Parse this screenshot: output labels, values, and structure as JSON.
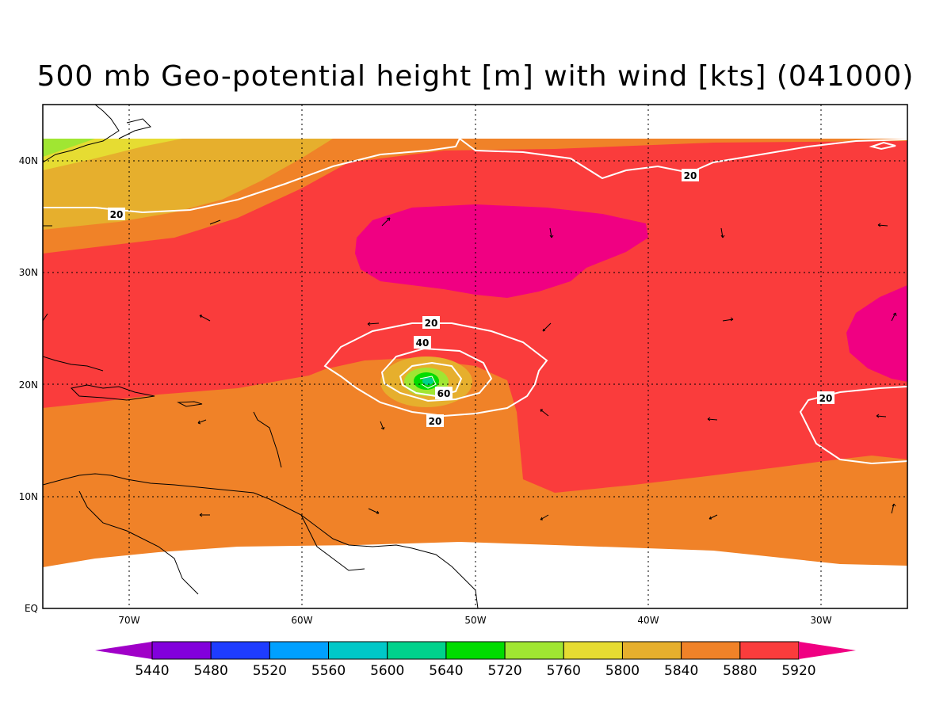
{
  "title": "500 mb Geo-potential height [m] with wind [kts] (041000)",
  "axes": {
    "lon_labels": [
      "70W",
      "60W",
      "50W",
      "40W",
      "30W"
    ],
    "lat_labels": [
      "EQ",
      "10N",
      "20N",
      "30N",
      "40N"
    ],
    "lon_range": [
      -75,
      -25
    ],
    "lat_range": [
      0,
      45
    ],
    "grid": "dotted"
  },
  "colorbar": {
    "levels": [
      "5440",
      "5480",
      "5520",
      "5560",
      "5600",
      "5640",
      "5720",
      "5760",
      "5800",
      "5840",
      "5880",
      "5920"
    ],
    "colors": [
      "#a000c8",
      "#8200dc",
      "#1e3cff",
      "#00a0ff",
      "#00c8c8",
      "#00d28c",
      "#00dc00",
      "#a0e632",
      "#e6dc32",
      "#e6af2d",
      "#f08228",
      "#fa3c3c",
      "#f00082"
    ],
    "extend": "both"
  },
  "wind_contours": {
    "labels": [
      "20",
      "20",
      "20",
      "40",
      "60",
      "20",
      "20"
    ],
    "color": "#ffffff"
  },
  "fill_colors": {
    "c5840": "#e6af2d",
    "c5800": "#e6dc32",
    "c5760": "#a0e632",
    "c5880": "#f08228",
    "c5920": "#fa3c3c",
    "c_high": "#f00082",
    "c5720": "#00dc00",
    "c5640": "#00d28c"
  }
}
